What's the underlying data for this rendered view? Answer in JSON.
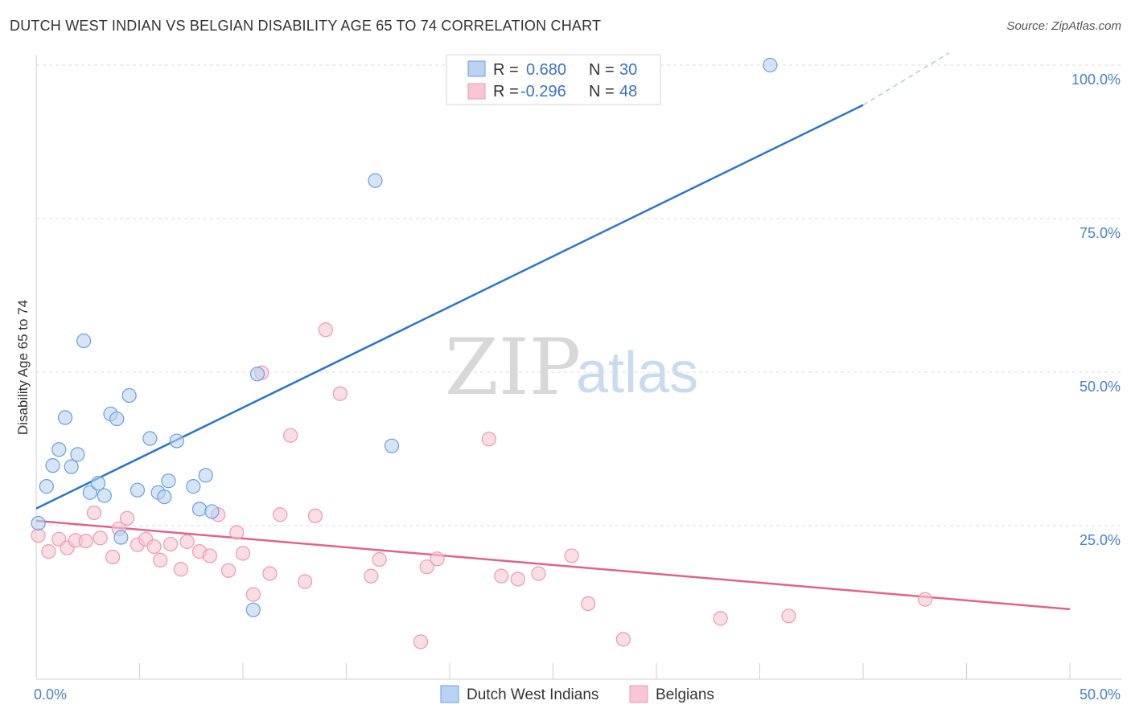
{
  "title": "DUTCH WEST INDIAN VS BELGIAN DISABILITY AGE 65 TO 74 CORRELATION CHART",
  "source": "Source: ZipAtlas.com",
  "colors": {
    "blue_fill": "#b9d3f2",
    "blue_stroke": "#6a9fe0",
    "blue_line": "#2f74c9",
    "pink_fill": "#f8c6d5",
    "pink_stroke": "#ee98b3",
    "pink_line": "#e0638e",
    "grid": "#dcdcdc",
    "tick_text": "#4a80c8"
  },
  "legend": {
    "rows": [
      {
        "r_label": "R =",
        "r_value": "0.680",
        "n_label": "N =",
        "n_value": "30"
      },
      {
        "r_label": "R =",
        "r_value": "-0.296",
        "n_label": "N =",
        "n_value": "48"
      }
    ]
  },
  "watermark": {
    "zip": "ZIP",
    "atlas": "atlas"
  },
  "chart_data": {
    "type": "scatter",
    "title": "DUTCH WEST INDIAN VS BELGIAN DISABILITY AGE 65 TO 74 CORRELATION CHART",
    "xlabel": "",
    "ylabel": "Disability Age 65 to 74",
    "xlim": [
      0,
      50
    ],
    "ylim": [
      0,
      102
    ],
    "x_tick_labels": [
      "0.0%",
      "50.0%"
    ],
    "y_ticks": [
      25,
      50,
      75,
      100
    ],
    "y_tick_labels": [
      "25.0%",
      "50.0%",
      "75.0%",
      "100.0%"
    ],
    "grid": true,
    "legend_position": "top-center",
    "series": [
      {
        "name": "Dutch West Indians",
        "color": "#6a9fe0",
        "points": [
          [
            0.1,
            25.4
          ],
          [
            0.5,
            31.4
          ],
          [
            0.8,
            34.8
          ],
          [
            1.1,
            37.4
          ],
          [
            1.4,
            42.6
          ],
          [
            1.7,
            34.6
          ],
          [
            2.0,
            36.6
          ],
          [
            2.3,
            55.1
          ],
          [
            2.6,
            30.4
          ],
          [
            3.0,
            31.9
          ],
          [
            3.3,
            29.9
          ],
          [
            3.6,
            43.2
          ],
          [
            3.9,
            42.4
          ],
          [
            4.1,
            23.1
          ],
          [
            4.5,
            46.2
          ],
          [
            4.9,
            30.8
          ],
          [
            5.5,
            39.2
          ],
          [
            5.9,
            30.4
          ],
          [
            6.2,
            29.7
          ],
          [
            6.4,
            32.3
          ],
          [
            6.8,
            38.8
          ],
          [
            7.6,
            31.4
          ],
          [
            7.9,
            27.7
          ],
          [
            8.2,
            33.2
          ],
          [
            8.5,
            27.3
          ],
          [
            10.5,
            11.3
          ],
          [
            10.7,
            49.7
          ],
          [
            16.4,
            81.2
          ],
          [
            17.2,
            38.0
          ],
          [
            35.5,
            100.0
          ]
        ],
        "trend": {
          "x": [
            0,
            40
          ],
          "y": [
            27.8,
            93.5
          ]
        },
        "trend_extension": {
          "x": [
            40,
            50
          ],
          "y": [
            93.5,
            110
          ]
        }
      },
      {
        "name": "Belgians",
        "color": "#ee98b3",
        "points": [
          [
            0.1,
            23.4
          ],
          [
            0.6,
            20.8
          ],
          [
            1.1,
            22.8
          ],
          [
            1.5,
            21.4
          ],
          [
            1.9,
            22.6
          ],
          [
            2.4,
            22.5
          ],
          [
            2.8,
            27.1
          ],
          [
            3.1,
            23.0
          ],
          [
            3.7,
            19.9
          ],
          [
            4.0,
            24.5
          ],
          [
            4.4,
            26.2
          ],
          [
            4.9,
            21.9
          ],
          [
            5.3,
            22.8
          ],
          [
            5.7,
            21.6
          ],
          [
            6.0,
            19.4
          ],
          [
            6.5,
            22.0
          ],
          [
            7.0,
            17.9
          ],
          [
            7.3,
            22.4
          ],
          [
            7.9,
            20.8
          ],
          [
            8.4,
            20.1
          ],
          [
            8.8,
            26.8
          ],
          [
            9.3,
            17.7
          ],
          [
            9.7,
            23.9
          ],
          [
            10.0,
            20.5
          ],
          [
            10.5,
            13.8
          ],
          [
            10.9,
            49.9
          ],
          [
            11.3,
            17.2
          ],
          [
            11.8,
            26.8
          ],
          [
            12.3,
            39.7
          ],
          [
            13.0,
            15.9
          ],
          [
            13.5,
            26.6
          ],
          [
            14.0,
            56.9
          ],
          [
            14.7,
            46.5
          ],
          [
            16.2,
            16.8
          ],
          [
            16.6,
            19.5
          ],
          [
            18.6,
            6.1
          ],
          [
            18.9,
            18.3
          ],
          [
            19.4,
            19.6
          ],
          [
            21.9,
            39.1
          ],
          [
            22.5,
            16.8
          ],
          [
            23.3,
            16.3
          ],
          [
            24.3,
            17.2
          ],
          [
            25.9,
            20.1
          ],
          [
            26.7,
            12.3
          ],
          [
            28.4,
            6.5
          ],
          [
            33.1,
            9.9
          ],
          [
            36.4,
            10.3
          ],
          [
            43.0,
            13.0
          ]
        ],
        "trend": {
          "x": [
            0,
            50
          ],
          "y": [
            25.8,
            11.4
          ]
        }
      }
    ]
  },
  "bottom_legend": [
    {
      "label": "Dutch West Indians"
    },
    {
      "label": "Belgians"
    }
  ]
}
